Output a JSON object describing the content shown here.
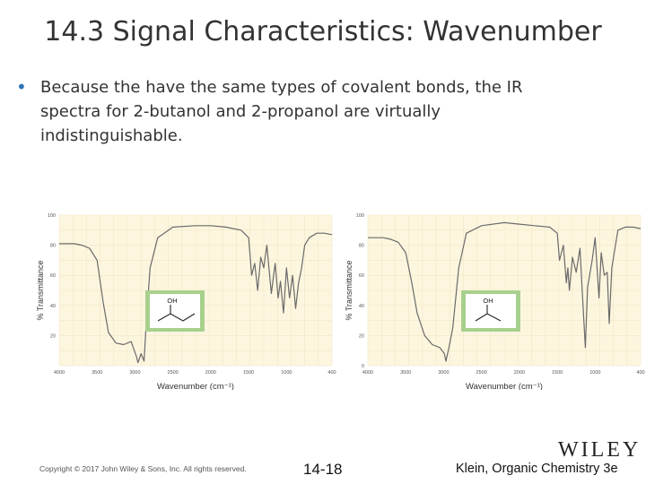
{
  "slide": {
    "title": "14.3 Signal Characteristics: Wavenumber",
    "bullet": "Because the have the same types of covalent bonds, the IR spectra for 2-butanol and 2-propanol are virtually indistinguishable."
  },
  "footer": {
    "copyright": "Copyright © 2017 John Wiley & Sons, Inc. All rights reserved.",
    "page": "14-18",
    "credit": "Klein, Organic Chemistry 3e",
    "logo": "WILEY"
  },
  "colors": {
    "accent": "#2e75b6",
    "chart_bg": "#fdf6df",
    "molecule_bg": "#a8d08d",
    "line": "#6a6a6a"
  },
  "chart_data": [
    {
      "type": "line",
      "xlabel": "Wavenumber (cm⁻¹)",
      "ylabel": "% Transmittance",
      "xlim": [
        4000,
        400
      ],
      "ylim": [
        0,
        100
      ],
      "x_ticks": [
        "4000",
        "3500",
        "3000",
        "2500",
        "2000",
        "1500",
        "1000",
        "400"
      ],
      "y_ticks": [
        "100",
        "80",
        "60",
        "40",
        "20"
      ],
      "molecule_label": "OH",
      "series": [
        {
          "x": [
            4000,
            3800,
            3700,
            3600,
            3500,
            3420,
            3350,
            3250,
            3150,
            3050,
            2980,
            2960,
            2920,
            2880,
            2850,
            2800,
            2700,
            2500,
            2200,
            2000,
            1800,
            1600,
            1500,
            1460,
            1420,
            1380,
            1340,
            1300,
            1260,
            1200,
            1150,
            1110,
            1080,
            1040,
            1000,
            960,
            920,
            880,
            840,
            800,
            760,
            700,
            600,
            500,
            400
          ],
          "y": [
            81,
            81,
            80,
            78,
            70,
            42,
            22,
            15,
            14,
            16,
            6,
            2,
            8,
            3,
            30,
            65,
            85,
            92,
            93,
            93,
            92,
            90,
            85,
            60,
            68,
            50,
            72,
            65,
            80,
            48,
            68,
            45,
            56,
            35,
            65,
            45,
            60,
            38,
            55,
            65,
            80,
            85,
            88,
            88,
            87
          ]
        }
      ]
    },
    {
      "type": "line",
      "xlabel": "Wavenumber (cm⁻¹)",
      "ylabel": "% Transmittance",
      "xlim": [
        4000,
        400
      ],
      "ylim": [
        0,
        100
      ],
      "x_ticks": [
        "4000",
        "3500",
        "3000",
        "2500",
        "2000",
        "1500",
        "1000",
        "400"
      ],
      "y_ticks": [
        "100",
        "80",
        "60",
        "40",
        "20",
        "0"
      ],
      "molecule_label": "OH",
      "series": [
        {
          "x": [
            4000,
            3800,
            3700,
            3600,
            3500,
            3420,
            3350,
            3250,
            3150,
            3050,
            2990,
            2970,
            2930,
            2880,
            2800,
            2700,
            2500,
            2200,
            2000,
            1800,
            1600,
            1500,
            1470,
            1420,
            1380,
            1360,
            1340,
            1300,
            1250,
            1200,
            1160,
            1130,
            1100,
            1040,
            1000,
            950,
            920,
            880,
            840,
            815,
            780,
            700,
            600,
            500,
            400
          ],
          "y": [
            85,
            85,
            84,
            82,
            75,
            55,
            35,
            20,
            14,
            12,
            8,
            3,
            12,
            25,
            65,
            88,
            93,
            95,
            94,
            93,
            92,
            88,
            70,
            80,
            55,
            65,
            50,
            72,
            62,
            78,
            40,
            12,
            52,
            70,
            85,
            45,
            75,
            60,
            62,
            28,
            65,
            90,
            92,
            92,
            91
          ]
        }
      ]
    }
  ]
}
